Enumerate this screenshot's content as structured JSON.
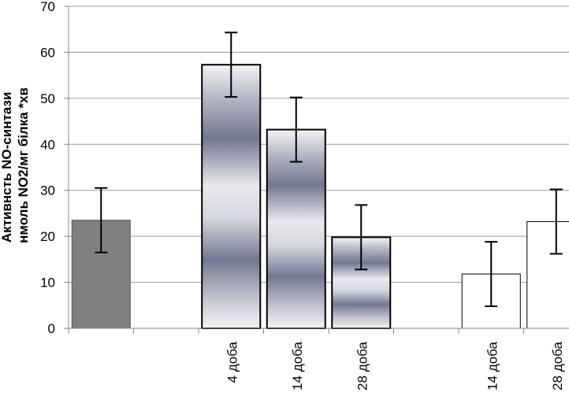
{
  "chart_data": {
    "type": "bar",
    "ylabel_lines": [
      "Активнсть NO-синтази",
      "нмоль NO2/мг білка *хв"
    ],
    "ylim": [
      0,
      70
    ],
    "yticks": [
      0,
      10,
      20,
      30,
      40,
      50,
      60,
      70
    ],
    "grid": true,
    "slots": [
      "",
      "",
      "4 доба",
      "14 доба",
      "28 доба",
      "",
      "14 доба",
      "28 доба"
    ],
    "bars": [
      {
        "slot": 0,
        "value": 23.5,
        "error": 7.0,
        "style": "solid-gray",
        "color": "#808080"
      },
      {
        "slot": 2,
        "value": 57.3,
        "error": 7.0,
        "style": "metallic-gradient"
      },
      {
        "slot": 3,
        "value": 43.2,
        "error": 7.0,
        "style": "metallic-gradient"
      },
      {
        "slot": 4,
        "value": 19.8,
        "error": 7.0,
        "style": "metallic-gradient"
      },
      {
        "slot": 6,
        "value": 11.8,
        "error": 7.0,
        "style": "white",
        "color": "#ffffff"
      },
      {
        "slot": 7,
        "value": 23.2,
        "error": 7.0,
        "style": "white",
        "color": "#ffffff"
      }
    ]
  }
}
